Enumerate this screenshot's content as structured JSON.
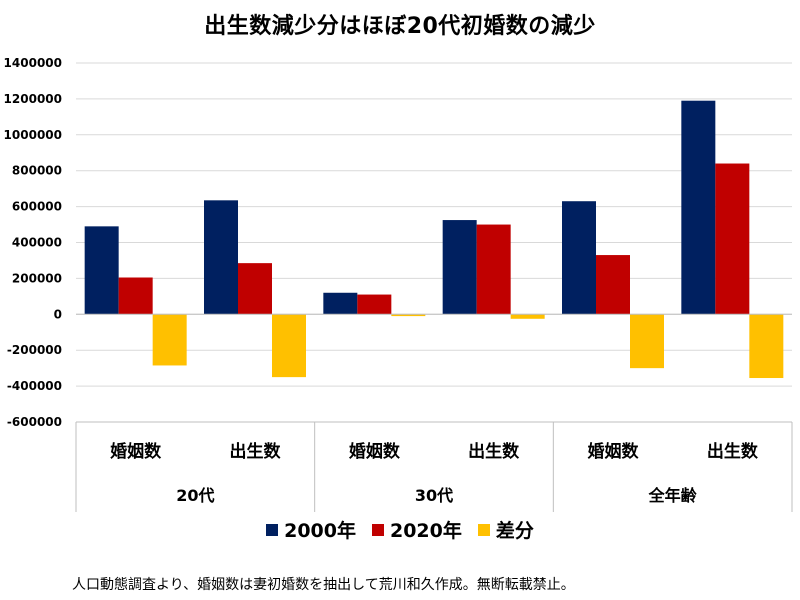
{
  "chart_data": {
    "type": "bar",
    "title": "出生数減少分はほぼ20代初婚数の減少",
    "categories": [
      "婚姻数",
      "出生数",
      "婚姻数",
      "出生数",
      "婚姻数",
      "出生数"
    ],
    "groups": [
      {
        "label": "20代",
        "span": 2
      },
      {
        "label": "30代",
        "span": 2
      },
      {
        "label": "全年齢",
        "span": 2
      }
    ],
    "series": [
      {
        "name": "2000年",
        "color": "#002060",
        "values": [
          490000,
          635000,
          120000,
          525000,
          630000,
          1190000
        ]
      },
      {
        "name": "2020年",
        "color": "#C00000",
        "values": [
          205000,
          285000,
          110000,
          500000,
          330000,
          840000
        ]
      },
      {
        "name": "差分",
        "color": "#FFC000",
        "values": [
          -285000,
          -350000,
          -10000,
          -25000,
          -300000,
          -355000
        ]
      }
    ],
    "ylim": [
      -600000,
      1400000
    ],
    "yticks": [
      "1400000",
      "1200000",
      "1000000",
      "800000",
      "600000",
      "400000",
      "200000",
      "0",
      "-200000",
      "-400000",
      "-600000"
    ],
    "grid": true,
    "legend_position": "bottom"
  },
  "footnote": "人口動態調査より、婚姻数は妻初婚数を抽出して荒川和久作成。無断転載禁止。"
}
